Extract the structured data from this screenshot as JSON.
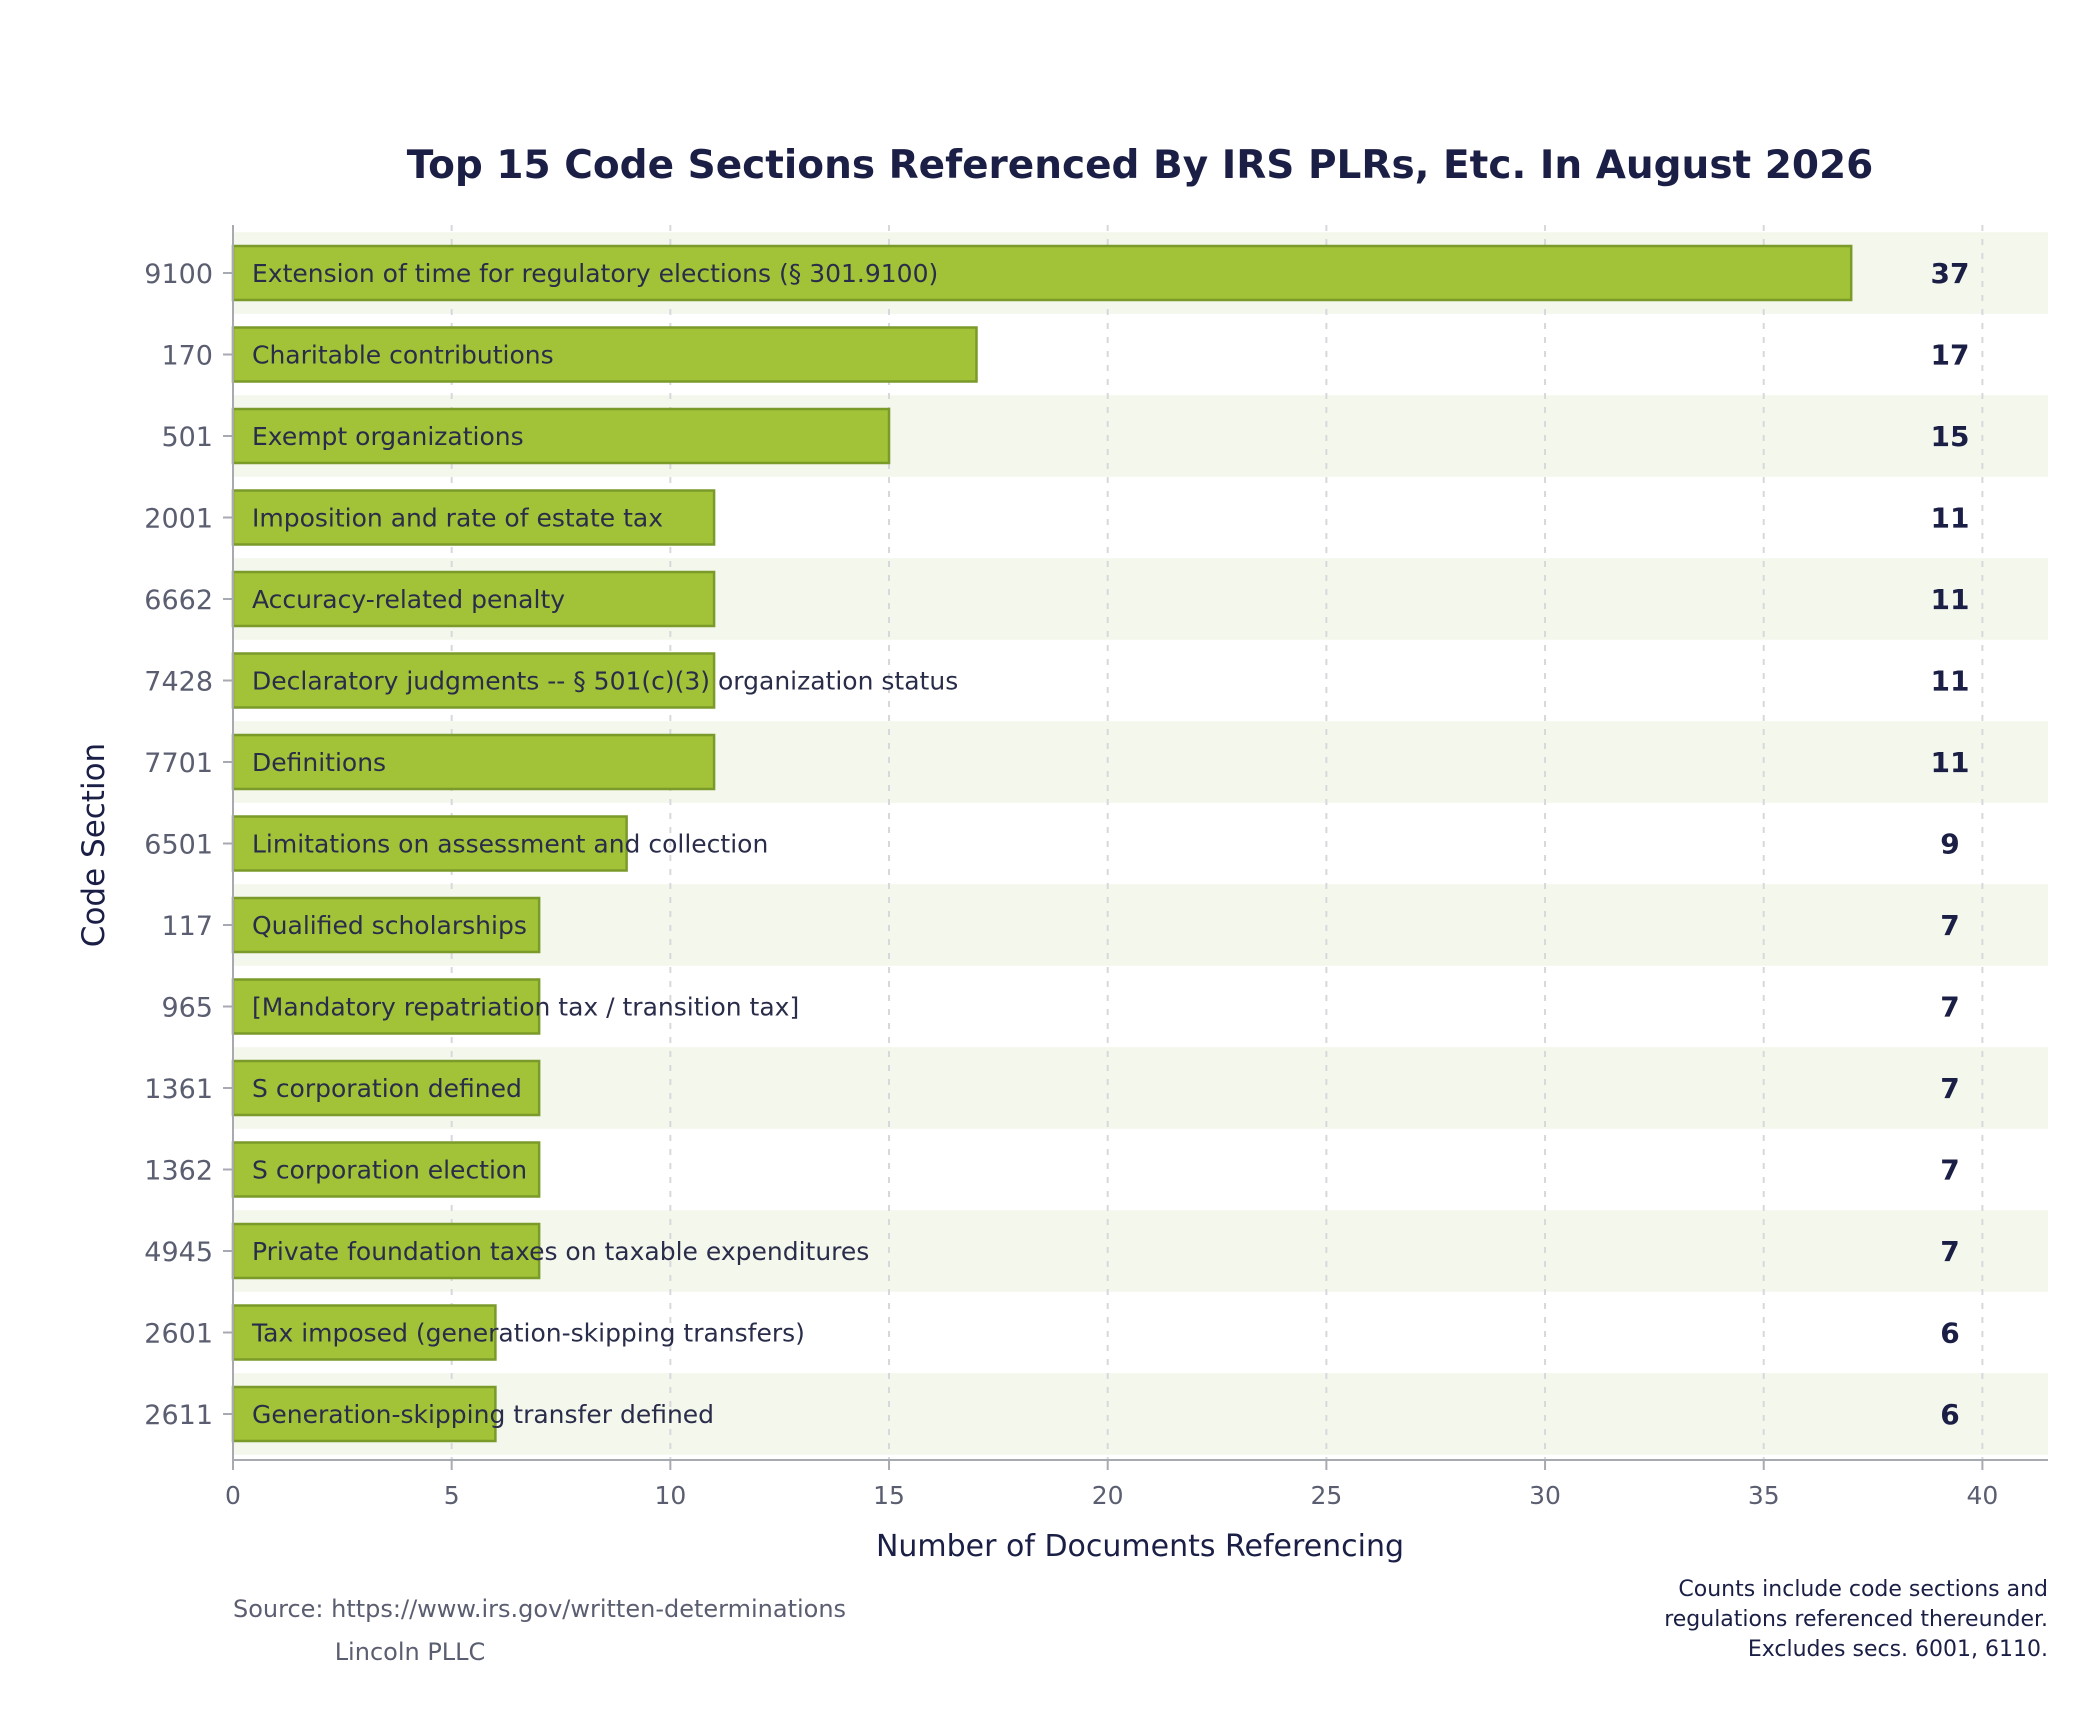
{
  "chart_data": {
    "type": "bar",
    "orientation": "horizontal",
    "title": "Top 15 Code Sections Referenced By IRS PLRs, Etc. In August 2026",
    "xlabel": "Number of Documents Referencing",
    "ylabel": "Code Section",
    "xlim": [
      0,
      41.5
    ],
    "xticks": [
      0,
      5,
      10,
      15,
      20,
      25,
      30,
      35,
      40
    ],
    "grid": "vertical dashed",
    "categories": [
      "9100",
      "170",
      "501",
      "2001",
      "6662",
      "7428",
      "7701",
      "6501",
      "117",
      "965",
      "1361",
      "1362",
      "4945",
      "2601",
      "2611"
    ],
    "descriptions": [
      "Extension of time for regulatory elections (§ 301.9100)",
      "Charitable contributions",
      "Exempt organizations",
      "Imposition and rate of estate tax",
      "Accuracy-related penalty",
      "Declaratory judgments -- § 501(c)(3) organization status",
      "Definitions",
      "Limitations on assessment and collection",
      "Qualified scholarships",
      "[Mandatory repatriation tax / transition tax]",
      "S corporation defined",
      "S corporation election",
      "Private foundation taxes on taxable expenditures",
      "Tax imposed (generation-skipping transfers)",
      "Generation-skipping transfer defined"
    ],
    "values": [
      37,
      17,
      15,
      11,
      11,
      11,
      11,
      9,
      7,
      7,
      7,
      7,
      7,
      6,
      6
    ],
    "source": "Source: https://www.irs.gov/written-determinations",
    "credit": "Lincoln PLLC",
    "notes": [
      "Counts include code sections and",
      "regulations referenced thereunder.",
      "Excludes secs. 6001, 6110."
    ],
    "colors": {
      "bar_fill": "#a2c238",
      "bar_edge": "#7a9a2a",
      "band": "#f4f7ec",
      "title": "#1b1f45",
      "value_label": "#1b1f45",
      "bar_text": "#2a2d4a",
      "tick_label": "#5a5e70",
      "axis": "#a8aab2",
      "grid": "#d8d8dc",
      "footer": "#5a5e70"
    }
  }
}
